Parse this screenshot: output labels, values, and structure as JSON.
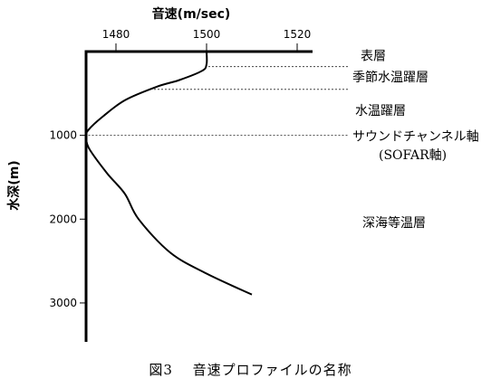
{
  "chart_data": {
    "type": "line",
    "xlabel": "音速(m/sec)",
    "ylabel": "水深(m)",
    "x_ticks": [
      1480,
      1500,
      1520
    ],
    "y_ticks": [
      1000,
      2000,
      3000
    ],
    "xlim": [
      1472,
      1528
    ],
    "ylim": [
      0,
      3400
    ],
    "series": [
      {
        "points": [
          {
            "x": 1500,
            "y": 0
          },
          {
            "x": 1500,
            "y": 150
          },
          {
            "x": 1499,
            "y": 230
          },
          {
            "x": 1494,
            "y": 340
          },
          {
            "x": 1489,
            "y": 420
          },
          {
            "x": 1482,
            "y": 580
          },
          {
            "x": 1477,
            "y": 780
          },
          {
            "x": 1474,
            "y": 930
          },
          {
            "x": 1473.5,
            "y": 1000
          },
          {
            "x": 1474,
            "y": 1150
          },
          {
            "x": 1478,
            "y": 1450
          },
          {
            "x": 1482,
            "y": 1700
          },
          {
            "x": 1485,
            "y": 2000
          },
          {
            "x": 1492,
            "y": 2400
          },
          {
            "x": 1500,
            "y": 2650
          },
          {
            "x": 1510,
            "y": 2900
          }
        ]
      }
    ],
    "layer_boundaries": [
      {
        "y": 180,
        "x_start": 1500
      },
      {
        "y": 450,
        "x_start": 1488
      },
      {
        "y": 1000,
        "x_start": 1473.5
      }
    ],
    "layer_labels": [
      {
        "text": "表層",
        "depth": 50
      },
      {
        "text": "季節水温躍層",
        "depth": 300
      },
      {
        "text": "水温躍層",
        "depth": 700
      },
      {
        "text": "サウンドチャンネル軸",
        "depth": 1010
      },
      {
        "text": "(SOFAR軸)",
        "depth": 1230
      },
      {
        "text": "深海等温層",
        "depth": 2040
      }
    ]
  },
  "caption": "図3　 音速プロファイルの名称"
}
